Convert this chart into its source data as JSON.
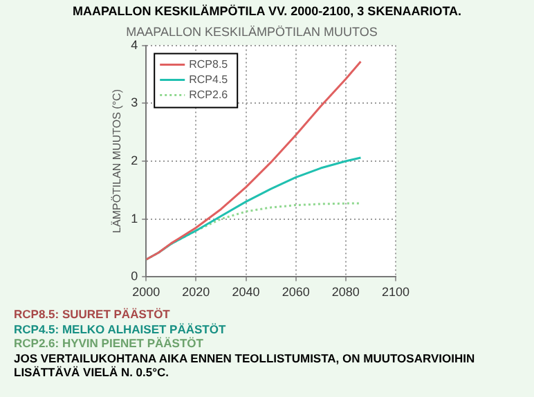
{
  "chart_data": {
    "type": "line",
    "title": "MAAPALLON KESKILÄMPÖTILA VV. 2000-2100, 3 SKENAARIOTA.",
    "subtitle": "MAAPALLON KESKILÄMPÖTILAN MUUTOS",
    "ylabel": "LÄMPÖTILAN MUUTOS (°C)",
    "x": [
      2000,
      2005,
      2010,
      2020,
      2030,
      2040,
      2050,
      2060,
      2070,
      2080,
      2086
    ],
    "series": [
      {
        "name": "RCP8.5",
        "color": "#e06060",
        "values": [
          0.3,
          0.42,
          0.58,
          0.85,
          1.17,
          1.55,
          1.98,
          2.45,
          2.95,
          3.42,
          3.72
        ]
      },
      {
        "name": "RCP4.5",
        "color": "#20c0b0",
        "values": [
          0.3,
          0.42,
          0.57,
          0.8,
          1.05,
          1.3,
          1.52,
          1.72,
          1.88,
          2.0,
          2.06
        ]
      },
      {
        "name": "RCP2.6",
        "color": "#90d890",
        "line_style": "dotted",
        "values": [
          0.3,
          0.42,
          0.57,
          0.8,
          1.0,
          1.13,
          1.2,
          1.24,
          1.26,
          1.27,
          1.27
        ]
      }
    ],
    "xlim": [
      2000,
      2100
    ],
    "xticks": [
      2000,
      2020,
      2040,
      2060,
      2080,
      2100
    ],
    "ylim": [
      0,
      4
    ],
    "yticks": [
      0,
      1,
      2,
      3,
      4
    ],
    "grid": true,
    "legend": "top left",
    "marker": "none",
    "line_style": "solid",
    "annotations": [
      "RCP8.5: SUURET PÄÄSTÖT",
      "RCP4.5: MELKO ALHAISET PÄÄSTÖT",
      "RCP2.6: HYVIN PIENET PÄÄSTÖT",
      "JOS VERTAILUKOHTANA AIKA ENNEN TEOLLISTUMISTA, ON MUUTOSARVIOIHIN LISÄTTÄVÄ VIELÄ N. 0.5°C."
    ]
  }
}
